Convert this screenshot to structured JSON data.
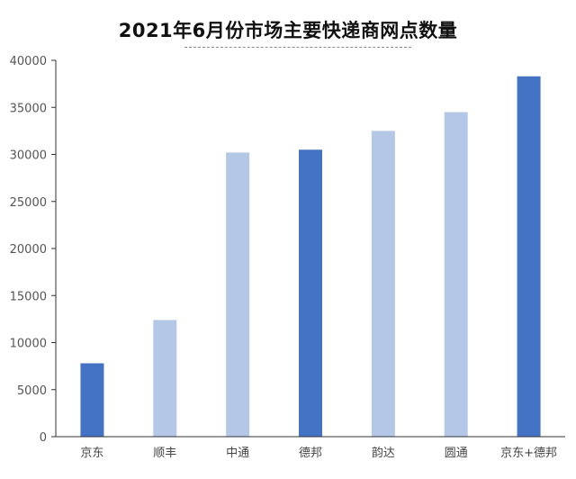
{
  "chart_data": {
    "type": "bar",
    "title": "2021年6月份市场主要快递商网点数量",
    "categories": [
      "京东",
      "顺丰",
      "中通",
      "德邦",
      "韵达",
      "圆通",
      "京东+德邦"
    ],
    "values": [
      7800,
      12400,
      30200,
      30500,
      32500,
      34500,
      38300
    ],
    "highlight": [
      true,
      false,
      false,
      true,
      false,
      false,
      true
    ],
    "ylim": [
      0,
      40000
    ],
    "yticks": [
      0,
      5000,
      10000,
      15000,
      20000,
      25000,
      30000,
      35000,
      40000
    ],
    "colors": {
      "highlight": "#4472C4",
      "normal": "#B4C7E7",
      "axis": "#333333"
    },
    "grid": false,
    "legend": "none"
  }
}
